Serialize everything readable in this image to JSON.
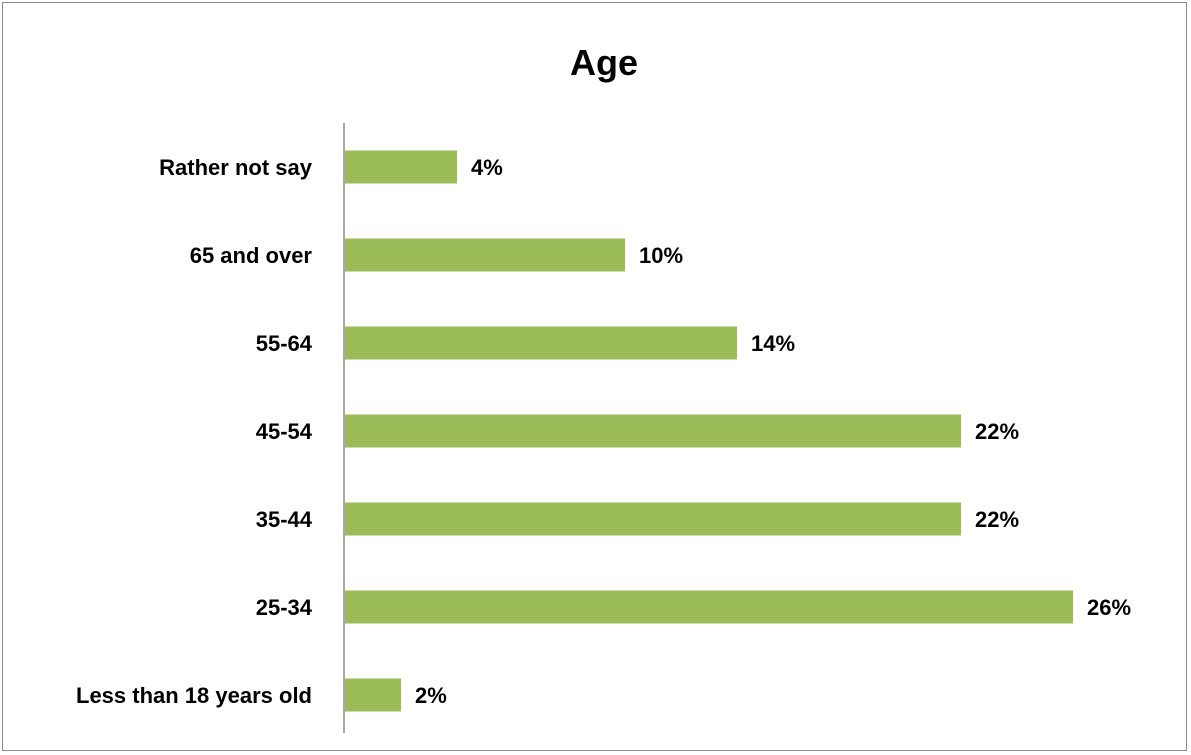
{
  "chart_data": {
    "type": "bar",
    "orientation": "horizontal",
    "title": "Age",
    "xlabel": "",
    "ylabel": "",
    "categories": [
      "Rather not say",
      "65 and over",
      "55-64",
      "45-54",
      "35-44",
      "25-34",
      "Less than 18 years old"
    ],
    "values": [
      4,
      10,
      14,
      22,
      22,
      26,
      2
    ],
    "value_labels": [
      "4%",
      "10%",
      "14%",
      "22%",
      "22%",
      "26%",
      "2%"
    ],
    "value_unit": "%",
    "xlim": [
      0,
      28
    ],
    "grid": false,
    "legend": "none",
    "colors": {
      "bar": "#9BBB59",
      "axis": "#8C8C8C",
      "text": "#000000"
    }
  }
}
